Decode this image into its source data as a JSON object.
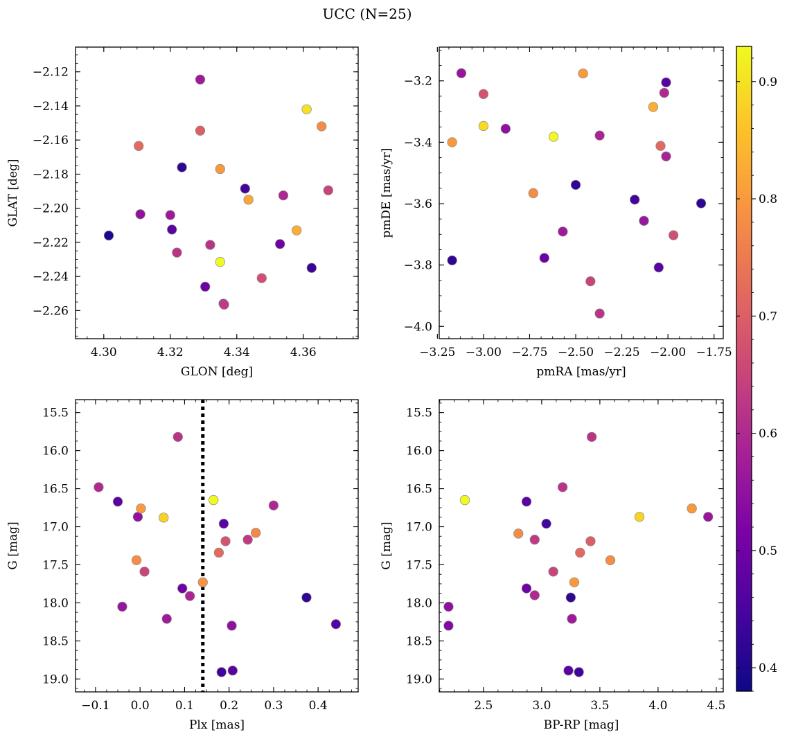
{
  "figure_title": "UCC (N=25)",
  "colorbar": {
    "vmin": 0.38,
    "vmax": 0.93,
    "ticks": [
      0.4,
      0.5,
      0.6,
      0.7,
      0.8,
      0.9
    ],
    "tick_labels": [
      "0.4",
      "0.5",
      "0.6",
      "0.7",
      "0.8",
      "0.9"
    ],
    "colormap": "plasma"
  },
  "chart_data": [
    {
      "type": "scatter",
      "id": "glon-glat",
      "xlabel": "GLON [deg]",
      "ylabel": "GLAT [deg]",
      "xlim": [
        4.2915,
        4.3765
      ],
      "ylim": [
        -2.2765,
        -2.1055
      ],
      "y_inverted": false,
      "xticks": [
        4.3,
        4.32,
        4.34,
        4.36
      ],
      "xtick_labels": [
        "4.30",
        "4.32",
        "4.34",
        "4.36"
      ],
      "yticks": [
        -2.12,
        -2.14,
        -2.16,
        -2.18,
        -2.2,
        -2.22,
        -2.24,
        -2.26
      ],
      "ytick_labels": [
        "−2.12",
        "−2.14",
        "−2.16",
        "−2.18",
        "−2.20",
        "−2.22",
        "−2.24",
        "−2.26"
      ],
      "points": [
        {
          "x": 4.3015,
          "y": -2.216,
          "c": 0.4
        },
        {
          "x": 4.3105,
          "y": -2.1635,
          "c": 0.72
        },
        {
          "x": 4.311,
          "y": -2.2035,
          "c": 0.55
        },
        {
          "x": 4.32,
          "y": -2.204,
          "c": 0.57
        },
        {
          "x": 4.3205,
          "y": -2.2125,
          "c": 0.47
        },
        {
          "x": 4.322,
          "y": -2.226,
          "c": 0.62
        },
        {
          "x": 4.3235,
          "y": -2.176,
          "c": 0.42
        },
        {
          "x": 4.329,
          "y": -2.1245,
          "c": 0.57
        },
        {
          "x": 4.329,
          "y": -2.1545,
          "c": 0.7
        },
        {
          "x": 4.3305,
          "y": -2.246,
          "c": 0.5
        },
        {
          "x": 4.332,
          "y": -2.2215,
          "c": 0.62
        },
        {
          "x": 4.335,
          "y": -2.177,
          "c": 0.8
        },
        {
          "x": 4.335,
          "y": -2.2315,
          "c": 0.93
        },
        {
          "x": 4.336,
          "y": -2.256,
          "c": 0.53
        },
        {
          "x": 4.3362,
          "y": -2.2565,
          "c": 0.63
        },
        {
          "x": 4.3425,
          "y": -2.1885,
          "c": 0.44
        },
        {
          "x": 4.3435,
          "y": -2.195,
          "c": 0.82
        },
        {
          "x": 4.3475,
          "y": -2.241,
          "c": 0.67
        },
        {
          "x": 4.353,
          "y": -2.221,
          "c": 0.5
        },
        {
          "x": 4.354,
          "y": -2.1925,
          "c": 0.6
        },
        {
          "x": 4.358,
          "y": -2.213,
          "c": 0.83
        },
        {
          "x": 4.361,
          "y": -2.142,
          "c": 0.9
        },
        {
          "x": 4.3625,
          "y": -2.235,
          "c": 0.43
        },
        {
          "x": 4.3655,
          "y": -2.152,
          "c": 0.78
        },
        {
          "x": 4.3675,
          "y": -2.1895,
          "c": 0.65
        }
      ]
    },
    {
      "type": "scatter",
      "id": "pmra-pmde",
      "xlabel": "pmRA [mas/yr]",
      "ylabel": "pmDE [mas/yr]",
      "xlim": [
        -3.24,
        -1.7
      ],
      "ylim": [
        -4.04,
        -3.09
      ],
      "y_inverted": false,
      "xticks": [
        -3.25,
        -3.0,
        -2.75,
        -2.5,
        -2.25,
        -2.0,
        -1.75
      ],
      "xtick_labels": [
        "−3.25",
        "−3.00",
        "−2.75",
        "−2.50",
        "−2.25",
        "−2.00",
        "−1.75"
      ],
      "yticks": [
        -3.2,
        -3.4,
        -3.6,
        -3.8,
        -4.0
      ],
      "ytick_labels": [
        "−3.2",
        "−3.4",
        "−3.6",
        "−3.8",
        "−4.0"
      ],
      "points": [
        {
          "x": -3.17,
          "y": -3.4,
          "c": 0.8
        },
        {
          "x": -3.17,
          "y": -3.785,
          "c": 0.42
        },
        {
          "x": -3.12,
          "y": -3.175,
          "c": 0.56
        },
        {
          "x": -3.0,
          "y": -3.243,
          "c": 0.68
        },
        {
          "x": -3.0,
          "y": -3.347,
          "c": 0.89
        },
        {
          "x": -2.88,
          "y": -3.356,
          "c": 0.55
        },
        {
          "x": -2.73,
          "y": -3.566,
          "c": 0.78
        },
        {
          "x": -2.67,
          "y": -3.777,
          "c": 0.5
        },
        {
          "x": -2.62,
          "y": -3.382,
          "c": 0.93
        },
        {
          "x": -2.57,
          "y": -3.691,
          "c": 0.57
        },
        {
          "x": -2.5,
          "y": -3.539,
          "c": 0.42
        },
        {
          "x": -2.46,
          "y": -3.176,
          "c": 0.8
        },
        {
          "x": -2.42,
          "y": -3.853,
          "c": 0.65
        },
        {
          "x": -2.37,
          "y": -3.378,
          "c": 0.59
        },
        {
          "x": -2.37,
          "y": -3.958,
          "c": 0.62
        },
        {
          "x": -2.18,
          "y": -3.587,
          "c": 0.44
        },
        {
          "x": -2.13,
          "y": -3.656,
          "c": 0.56
        },
        {
          "x": -2.08,
          "y": -3.285,
          "c": 0.83
        },
        {
          "x": -2.05,
          "y": -3.808,
          "c": 0.47
        },
        {
          "x": -2.04,
          "y": -3.412,
          "c": 0.72
        },
        {
          "x": -2.02,
          "y": -3.239,
          "c": 0.6
        },
        {
          "x": -2.01,
          "y": -3.205,
          "c": 0.47
        },
        {
          "x": -2.01,
          "y": -3.446,
          "c": 0.59
        },
        {
          "x": -1.97,
          "y": -3.703,
          "c": 0.67
        },
        {
          "x": -1.82,
          "y": -3.599,
          "c": 0.42
        }
      ]
    },
    {
      "type": "scatter",
      "id": "plx-g",
      "xlabel": "Plx [mas]",
      "ylabel": "G [mag]",
      "xlim": [
        -0.145,
        0.49
      ],
      "ylim": [
        19.17,
        15.33
      ],
      "y_inverted": true,
      "vline": 0.141,
      "xticks": [
        -0.1,
        0.0,
        0.1,
        0.2,
        0.3,
        0.4
      ],
      "xtick_labels": [
        "−0.1",
        "0.0",
        "0.1",
        "0.2",
        "0.3",
        "0.4"
      ],
      "yticks": [
        15.5,
        16.0,
        16.5,
        17.0,
        17.5,
        18.0,
        18.5,
        19.0
      ],
      "ytick_labels": [
        "15.5",
        "16.0",
        "16.5",
        "17.0",
        "17.5",
        "18.0",
        "18.5",
        "19.0"
      ],
      "points": [
        {
          "x": -0.093,
          "y": 16.48,
          "c": 0.6
        },
        {
          "x": -0.05,
          "y": 16.67,
          "c": 0.47
        },
        {
          "x": -0.04,
          "y": 18.05,
          "c": 0.56
        },
        {
          "x": -0.008,
          "y": 17.44,
          "c": 0.78
        },
        {
          "x": -0.005,
          "y": 16.87,
          "c": 0.55
        },
        {
          "x": 0.002,
          "y": 16.76,
          "c": 0.8
        },
        {
          "x": 0.01,
          "y": 17.59,
          "c": 0.65
        },
        {
          "x": 0.053,
          "y": 16.88,
          "c": 0.88
        },
        {
          "x": 0.06,
          "y": 18.21,
          "c": 0.57
        },
        {
          "x": 0.085,
          "y": 15.82,
          "c": 0.62
        },
        {
          "x": 0.095,
          "y": 17.81,
          "c": 0.5
        },
        {
          "x": 0.112,
          "y": 17.91,
          "c": 0.59
        },
        {
          "x": 0.141,
          "y": 17.73,
          "c": 0.79
        },
        {
          "x": 0.165,
          "y": 16.65,
          "c": 0.93
        },
        {
          "x": 0.177,
          "y": 17.34,
          "c": 0.72
        },
        {
          "x": 0.183,
          "y": 18.91,
          "c": 0.44
        },
        {
          "x": 0.188,
          "y": 16.96,
          "c": 0.47
        },
        {
          "x": 0.192,
          "y": 17.19,
          "c": 0.68
        },
        {
          "x": 0.206,
          "y": 18.3,
          "c": 0.55
        },
        {
          "x": 0.208,
          "y": 18.89,
          "c": 0.47
        },
        {
          "x": 0.242,
          "y": 17.17,
          "c": 0.63
        },
        {
          "x": 0.26,
          "y": 17.08,
          "c": 0.77
        },
        {
          "x": 0.3,
          "y": 16.72,
          "c": 0.6
        },
        {
          "x": 0.374,
          "y": 17.93,
          "c": 0.42
        },
        {
          "x": 0.44,
          "y": 18.28,
          "c": 0.47
        }
      ]
    },
    {
      "type": "scatter",
      "id": "bprp-g",
      "xlabel": "BP-RP [mag]",
      "ylabel": "G [mag]",
      "xlim": [
        2.12,
        4.56
      ],
      "ylim": [
        19.17,
        15.33
      ],
      "y_inverted": true,
      "xticks": [
        2.5,
        3.0,
        3.5,
        4.0,
        4.5
      ],
      "xtick_labels": [
        "2.5",
        "3.0",
        "3.5",
        "4.0",
        "4.5"
      ],
      "yticks": [
        15.5,
        16.0,
        16.5,
        17.0,
        17.5,
        18.0,
        18.5,
        19.0
      ],
      "ytick_labels": [
        "15.5",
        "16.0",
        "16.5",
        "17.0",
        "17.5",
        "18.0",
        "18.5",
        "19.0"
      ],
      "points": [
        {
          "x": 2.2,
          "y": 18.05,
          "c": 0.55
        },
        {
          "x": 2.2,
          "y": 18.3,
          "c": 0.53
        },
        {
          "x": 2.34,
          "y": 16.65,
          "c": 0.93
        },
        {
          "x": 2.8,
          "y": 17.09,
          "c": 0.78
        },
        {
          "x": 2.87,
          "y": 16.67,
          "c": 0.47
        },
        {
          "x": 2.87,
          "y": 17.81,
          "c": 0.5
        },
        {
          "x": 2.94,
          "y": 17.17,
          "c": 0.63
        },
        {
          "x": 2.94,
          "y": 17.9,
          "c": 0.6
        },
        {
          "x": 3.04,
          "y": 16.96,
          "c": 0.44
        },
        {
          "x": 3.1,
          "y": 17.59,
          "c": 0.65
        },
        {
          "x": 3.18,
          "y": 16.48,
          "c": 0.62
        },
        {
          "x": 3.23,
          "y": 18.89,
          "c": 0.47
        },
        {
          "x": 3.25,
          "y": 17.93,
          "c": 0.42
        },
        {
          "x": 3.26,
          "y": 18.21,
          "c": 0.57
        },
        {
          "x": 3.28,
          "y": 17.73,
          "c": 0.8
        },
        {
          "x": 3.32,
          "y": 18.91,
          "c": 0.44
        },
        {
          "x": 3.33,
          "y": 17.34,
          "c": 0.72
        },
        {
          "x": 3.42,
          "y": 17.19,
          "c": 0.7
        },
        {
          "x": 3.43,
          "y": 15.82,
          "c": 0.62
        },
        {
          "x": 3.59,
          "y": 17.44,
          "c": 0.78
        },
        {
          "x": 3.84,
          "y": 16.87,
          "c": 0.88
        },
        {
          "x": 4.29,
          "y": 16.76,
          "c": 0.8
        },
        {
          "x": 4.43,
          "y": 16.87,
          "c": 0.56
        }
      ]
    }
  ]
}
